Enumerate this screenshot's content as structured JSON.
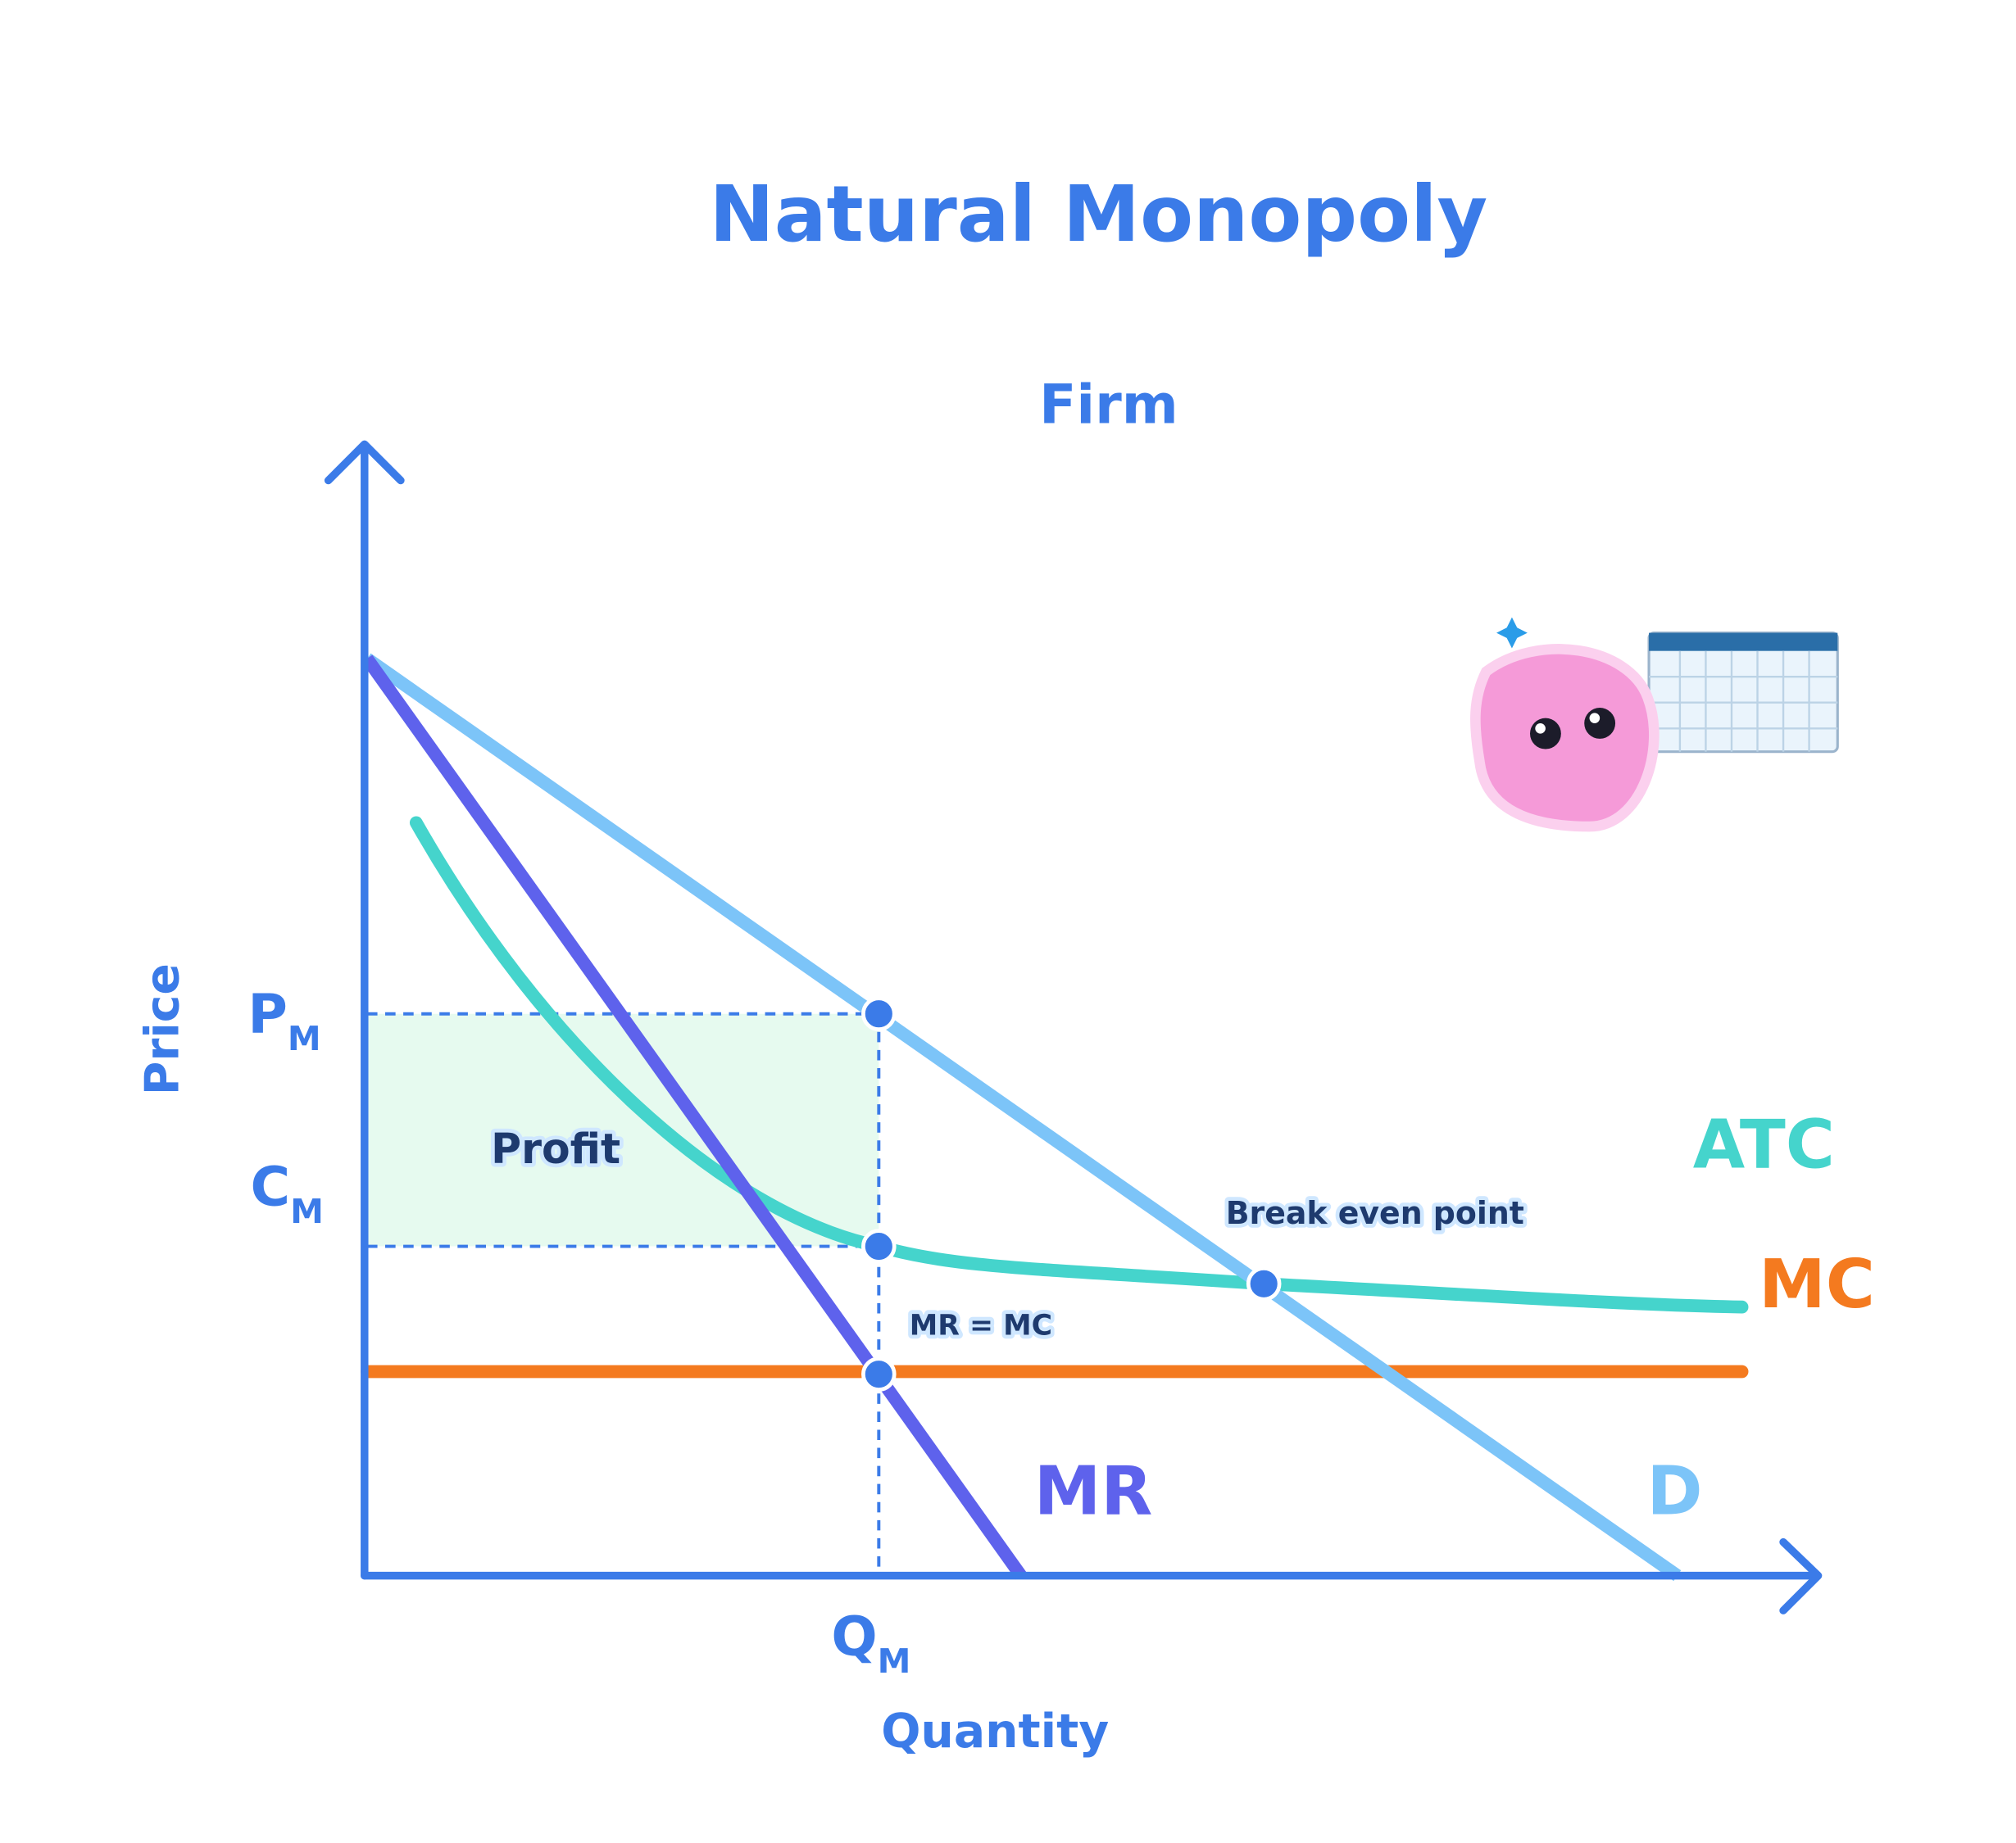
{
  "header": {
    "title": "Natural Monopoly",
    "subtitle": "Firm"
  },
  "axes": {
    "y_label": "Price",
    "x_label": "Quantity"
  },
  "levels": {
    "price": {
      "main": "P",
      "sub": "M"
    },
    "cost": {
      "main": "C",
      "sub": "M"
    },
    "quantity": {
      "main": "Q",
      "sub": "M"
    }
  },
  "curves": {
    "atc": "ATC",
    "mc": "MC",
    "mr": "MR",
    "demand": "D"
  },
  "annotations": {
    "profit": "Profit",
    "break_even": "Break even point",
    "mr_mc": "MR = MC"
  }
}
